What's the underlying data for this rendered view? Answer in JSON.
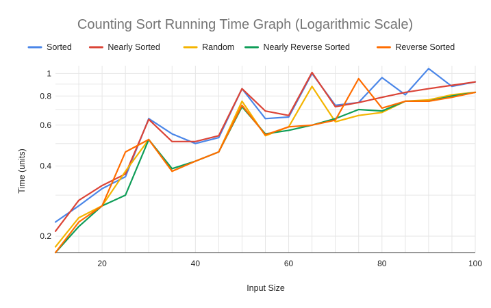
{
  "chart_data": {
    "type": "line",
    "title": "Counting Sort Running Time Graph (Logarithmic Scale)",
    "xlabel": "Input Size",
    "ylabel": "Time (units)",
    "y_scale": "log",
    "xlim": [
      10,
      100
    ],
    "ylim": [
      0.17,
      1.08
    ],
    "grid": true,
    "legend_position": "top",
    "x_ticks": [
      20,
      40,
      60,
      80,
      100
    ],
    "y_ticks": [
      0.2,
      0.4,
      0.6,
      0.8,
      1
    ],
    "y_tick_labels": [
      "0.2",
      "0.4",
      "0.6",
      "0.8",
      "1"
    ],
    "x": [
      10,
      15,
      20,
      25,
      30,
      35,
      40,
      45,
      50,
      55,
      60,
      65,
      70,
      75,
      80,
      85,
      90,
      95,
      100
    ],
    "series": [
      {
        "name": "Sorted",
        "color": "#4a86e8",
        "values": [
          0.23,
          0.27,
          0.32,
          0.36,
          0.64,
          0.55,
          0.5,
          0.53,
          0.86,
          0.64,
          0.65,
          1.0,
          0.73,
          0.75,
          0.96,
          0.81,
          1.05,
          0.88,
          0.92
        ]
      },
      {
        "name": "Nearly Sorted",
        "color": "#db4437",
        "values": [
          0.21,
          0.285,
          0.33,
          0.37,
          0.635,
          0.51,
          0.51,
          0.54,
          0.86,
          0.69,
          0.66,
          1.01,
          0.72,
          0.75,
          0.79,
          0.83,
          0.86,
          0.89,
          0.92
        ]
      },
      {
        "name": "Random",
        "color": "#f4b400",
        "values": [
          0.18,
          0.24,
          0.27,
          0.38,
          0.52,
          0.38,
          0.42,
          0.46,
          0.76,
          0.54,
          0.59,
          0.88,
          0.62,
          0.66,
          0.68,
          0.76,
          0.77,
          0.81,
          0.83
        ]
      },
      {
        "name": "Nearly Reverse Sorted",
        "color": "#0f9d58",
        "values": [
          0.17,
          0.22,
          0.27,
          0.3,
          0.52,
          0.39,
          0.42,
          0.46,
          0.72,
          0.55,
          0.57,
          0.6,
          0.64,
          0.7,
          0.69,
          0.76,
          0.76,
          0.8,
          0.83
        ]
      },
      {
        "name": "Reverse Sorted",
        "color": "#ff6d00",
        "values": [
          0.17,
          0.23,
          0.27,
          0.46,
          0.52,
          0.38,
          0.42,
          0.46,
          0.73,
          0.545,
          0.59,
          0.6,
          0.63,
          0.95,
          0.71,
          0.76,
          0.76,
          0.79,
          0.83
        ]
      }
    ]
  }
}
